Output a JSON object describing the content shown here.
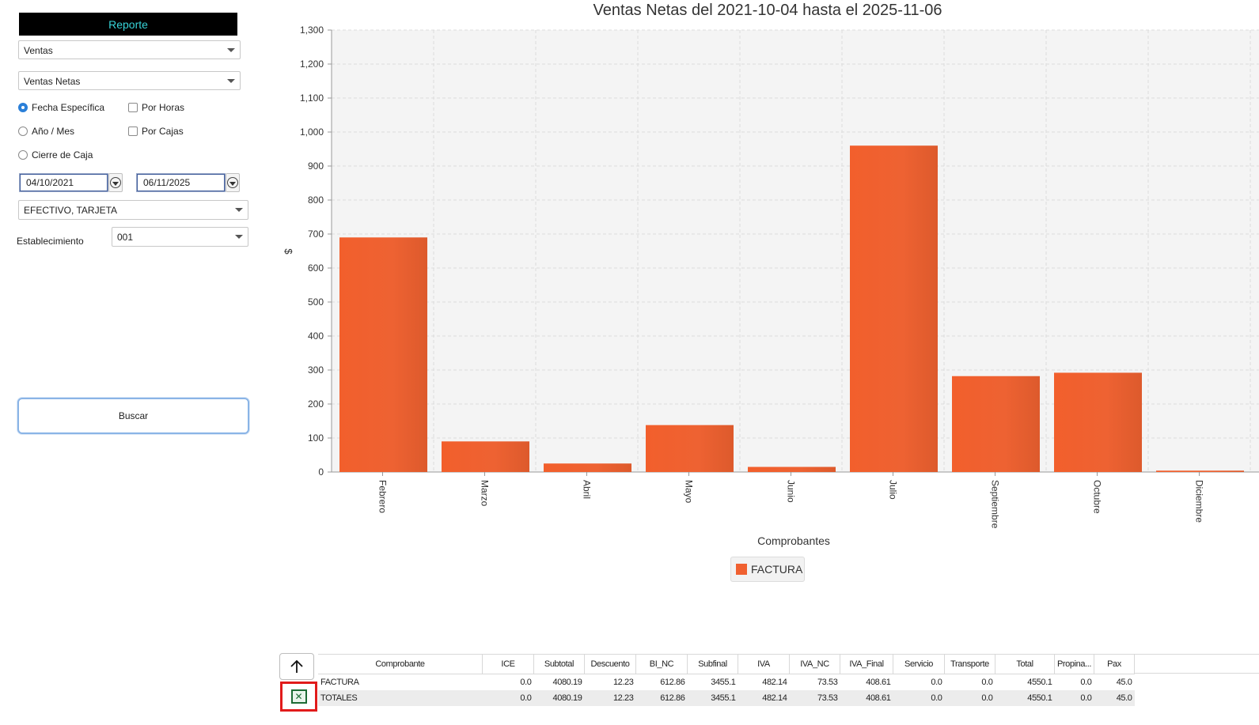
{
  "panel": {
    "title": "Reporte",
    "report_type": "Ventas",
    "report_subtype": "Ventas Netas",
    "options": {
      "fecha_especifica": "Fecha Específica",
      "anio_mes": "Año / Mes",
      "cierre_caja": "Cierre de Caja",
      "por_horas": "Por Horas",
      "por_cajas": "Por Cajas",
      "selected": "fecha_especifica"
    },
    "date_from": "04/10/2021",
    "date_to": "06/11/2025",
    "payment_methods": "EFECTIVO, TARJETA",
    "establecimiento_label": "Establecimiento",
    "establecimiento_value": "001",
    "search_button": "Buscar"
  },
  "chart_data": {
    "type": "bar",
    "title": "Ventas Netas del 2021-10-04 hasta el 2025-11-06",
    "xlabel": "Comprobantes",
    "ylabel": "$",
    "categories": [
      "Febrero",
      "Marzo",
      "Abril",
      "Mayo",
      "Junio",
      "Julio",
      "Septiembre",
      "Octubre",
      "Diciembre"
    ],
    "series": [
      {
        "name": "FACTURA",
        "values": [
          690,
          90,
          25,
          138,
          15,
          960,
          282,
          292,
          4
        ]
      }
    ],
    "ylim": [
      0,
      1300
    ],
    "yticks": [
      "0",
      "100",
      "200",
      "300",
      "400",
      "500",
      "600",
      "700",
      "800",
      "900",
      "1,000",
      "1,100",
      "1,200",
      "1,300"
    ],
    "grid": true,
    "legend_position": "bottom-center",
    "bar_color": "#f06030"
  },
  "table": {
    "columns": [
      "Comprobante",
      "ICE",
      "Subtotal",
      "Descuento",
      "BI_NC",
      "Subfinal",
      "IVA",
      "IVA_NC",
      "IVA_Final",
      "Servicio",
      "Transporte",
      "Total",
      "Propina...",
      "Pax"
    ],
    "rows": [
      [
        "FACTURA",
        "0.0",
        "4080.19",
        "12.23",
        "612.86",
        "3455.1",
        "482.14",
        "73.53",
        "408.61",
        "0.0",
        "0.0",
        "4550.1",
        "0.0",
        "45.0"
      ],
      [
        "TOTALES",
        "0.0",
        "4080.19",
        "12.23",
        "612.86",
        "3455.1",
        "482.14",
        "73.53",
        "408.61",
        "0.0",
        "0.0",
        "4550.1",
        "0.0",
        "45.0"
      ]
    ]
  },
  "icons": {
    "up": "arrow-up-icon",
    "export": "excel-export-icon"
  }
}
